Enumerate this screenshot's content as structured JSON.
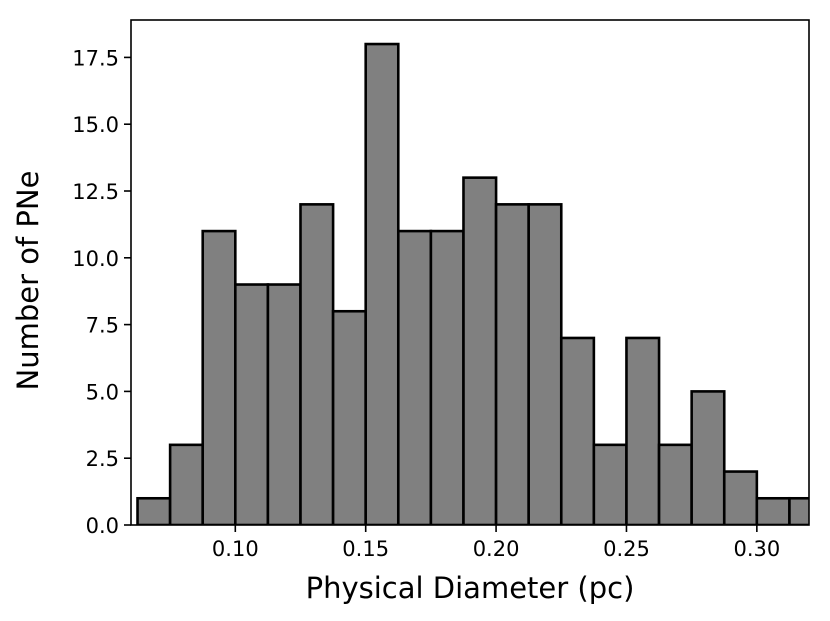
{
  "chart_data": {
    "type": "bar",
    "title": "",
    "xlabel": "Physical Diameter (pc)",
    "ylabel": "Number of PNe",
    "xlim": [
      0.06,
      0.32
    ],
    "ylim": [
      0,
      18.9
    ],
    "grid": false,
    "bar_color": "#808080",
    "edge_color": "#000000",
    "bins": [
      {
        "x0": 0.0625,
        "x1": 0.075,
        "count": 1
      },
      {
        "x0": 0.075,
        "x1": 0.0875,
        "count": 3
      },
      {
        "x0": 0.0875,
        "x1": 0.1,
        "count": 11
      },
      {
        "x0": 0.1,
        "x1": 0.1125,
        "count": 9
      },
      {
        "x0": 0.1125,
        "x1": 0.125,
        "count": 9
      },
      {
        "x0": 0.125,
        "x1": 0.1375,
        "count": 12
      },
      {
        "x0": 0.1375,
        "x1": 0.15,
        "count": 8
      },
      {
        "x0": 0.15,
        "x1": 0.1625,
        "count": 18
      },
      {
        "x0": 0.1625,
        "x1": 0.175,
        "count": 11
      },
      {
        "x0": 0.175,
        "x1": 0.1875,
        "count": 11
      },
      {
        "x0": 0.1875,
        "x1": 0.2,
        "count": 13
      },
      {
        "x0": 0.2,
        "x1": 0.2125,
        "count": 12
      },
      {
        "x0": 0.2125,
        "x1": 0.225,
        "count": 12
      },
      {
        "x0": 0.225,
        "x1": 0.2375,
        "count": 7
      },
      {
        "x0": 0.2375,
        "x1": 0.25,
        "count": 3
      },
      {
        "x0": 0.25,
        "x1": 0.2625,
        "count": 7
      },
      {
        "x0": 0.2625,
        "x1": 0.275,
        "count": 3
      },
      {
        "x0": 0.275,
        "x1": 0.2875,
        "count": 5
      },
      {
        "x0": 0.2875,
        "x1": 0.3,
        "count": 2
      },
      {
        "x0": 0.3,
        "x1": 0.3125,
        "count": 1
      },
      {
        "x0": 0.3125,
        "x1": 0.325,
        "count": 1
      }
    ],
    "x_ticks": [
      {
        "value": 0.1,
        "label": "0.10"
      },
      {
        "value": 0.15,
        "label": "0.15"
      },
      {
        "value": 0.2,
        "label": "0.20"
      },
      {
        "value": 0.25,
        "label": "0.25"
      },
      {
        "value": 0.3,
        "label": "0.30"
      }
    ],
    "y_ticks": [
      {
        "value": 0.0,
        "label": "0.0"
      },
      {
        "value": 2.5,
        "label": "2.5"
      },
      {
        "value": 5.0,
        "label": "5.0"
      },
      {
        "value": 7.5,
        "label": "7.5"
      },
      {
        "value": 10.0,
        "label": "10.0"
      },
      {
        "value": 12.5,
        "label": "12.5"
      },
      {
        "value": 15.0,
        "label": "15.0"
      },
      {
        "value": 17.5,
        "label": "17.5"
      }
    ]
  }
}
